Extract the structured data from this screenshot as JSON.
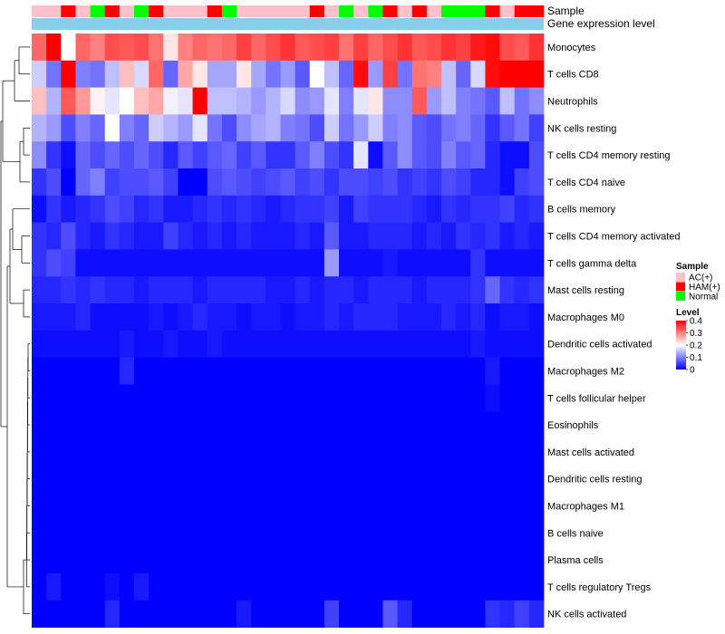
{
  "chart_data": {
    "type": "heatmap",
    "title": "",
    "annotation_labels": {
      "sample": "Sample",
      "expression": "Gene expression level"
    },
    "sample_annotation": [
      "AC(+)",
      "AC(+)",
      "HAM(+)",
      "AC(+)",
      "Normal",
      "HAM(+)",
      "AC(+)",
      "Normal",
      "HAM(+)",
      "AC(+)",
      "AC(+)",
      "AC(+)",
      "HAM(+)",
      "Normal",
      "AC(+)",
      "AC(+)",
      "AC(+)",
      "AC(+)",
      "AC(+)",
      "HAM(+)",
      "AC(+)",
      "Normal",
      "AC(+)",
      "Normal",
      "HAM(+)",
      "AC(+)",
      "HAM(+)",
      "AC(+)",
      "Normal",
      "Normal",
      "Normal",
      "HAM(+)",
      "AC(+)",
      "HAM(+)",
      "HAM(+)"
    ],
    "expression_annotation_color": "#87ceeb",
    "rows": [
      "Monocytes",
      "T cells CD8",
      "Neutrophils",
      "NK cells resting",
      "T cells CD4 memory resting",
      "T cells CD4 naive",
      "B cells memory",
      "T cells CD4 memory activated",
      "T cells gamma delta",
      "Mast cells resting",
      "Macrophages M0",
      "Dendritic cells activated",
      "Macrophages M2",
      "T cells follicular helper",
      "Eosinophils",
      "Mast cells activated",
      "Dendritic cells resting",
      "Macrophages M1",
      "B cells naive",
      "Plasma cells",
      "T cells regulatory  Tregs",
      "NK cells activated"
    ],
    "values": [
      [
        0.32,
        0.4,
        0.2,
        0.32,
        0.3,
        0.34,
        0.33,
        0.34,
        0.31,
        0.22,
        0.3,
        0.32,
        0.31,
        0.32,
        0.35,
        0.32,
        0.34,
        0.36,
        0.33,
        0.34,
        0.35,
        0.31,
        0.35,
        0.32,
        0.34,
        0.36,
        0.33,
        0.34,
        0.36,
        0.35,
        0.38,
        0.39,
        0.34,
        0.33,
        0.36
      ],
      [
        0.16,
        0.09,
        0.4,
        0.1,
        0.09,
        0.15,
        0.25,
        0.17,
        0.32,
        0.08,
        0.27,
        0.22,
        0.13,
        0.13,
        0.22,
        0.13,
        0.09,
        0.12,
        0.07,
        0.2,
        0.15,
        0.08,
        0.39,
        0.12,
        0.35,
        0.09,
        0.31,
        0.3,
        0.15,
        0.08,
        0.17,
        0.39,
        0.4,
        0.4,
        0.4
      ],
      [
        0.25,
        0.14,
        0.33,
        0.28,
        0.21,
        0.18,
        0.2,
        0.25,
        0.27,
        0.19,
        0.18,
        0.4,
        0.15,
        0.15,
        0.14,
        0.12,
        0.14,
        0.17,
        0.11,
        0.12,
        0.18,
        0.1,
        0.18,
        0.22,
        0.11,
        0.11,
        0.33,
        0.12,
        0.15,
        0.1,
        0.09,
        0.07,
        0.15,
        0.09,
        0.11
      ],
      [
        0.14,
        0.12,
        0.06,
        0.1,
        0.08,
        0.2,
        0.1,
        0.08,
        0.16,
        0.14,
        0.12,
        0.18,
        0.09,
        0.06,
        0.11,
        0.13,
        0.14,
        0.1,
        0.09,
        0.06,
        0.16,
        0.09,
        0.12,
        0.16,
        0.1,
        0.11,
        0.07,
        0.06,
        0.09,
        0.1,
        0.08,
        0.04,
        0.07,
        0.09,
        0.05
      ],
      [
        0.11,
        0.04,
        0.01,
        0.08,
        0.06,
        0.08,
        0.06,
        0.08,
        0.06,
        0.03,
        0.07,
        0.05,
        0.07,
        0.08,
        0.05,
        0.07,
        0.04,
        0.04,
        0.07,
        0.1,
        0.06,
        0.04,
        0.18,
        0.01,
        0.07,
        0.11,
        0.07,
        0.06,
        0.1,
        0.07,
        0.08,
        0.03,
        0.01,
        0.01,
        0.06
      ],
      [
        0.04,
        0.06,
        0.0,
        0.08,
        0.1,
        0.05,
        0.06,
        0.06,
        0.07,
        0.05,
        0.0,
        0.0,
        0.06,
        0.07,
        0.06,
        0.05,
        0.06,
        0.07,
        0.05,
        0.06,
        0.04,
        0.06,
        0.06,
        0.05,
        0.06,
        0.04,
        0.05,
        0.04,
        0.06,
        0.05,
        0.03,
        0.03,
        0.01,
        0.05,
        0.06
      ],
      [
        0.01,
        0.04,
        0.02,
        0.03,
        0.04,
        0.06,
        0.05,
        0.03,
        0.04,
        0.02,
        0.02,
        0.03,
        0.04,
        0.03,
        0.04,
        0.03,
        0.02,
        0.03,
        0.04,
        0.04,
        0.05,
        0.02,
        0.05,
        0.04,
        0.04,
        0.04,
        0.03,
        0.02,
        0.04,
        0.03,
        0.04,
        0.04,
        0.05,
        0.03,
        0.04
      ],
      [
        0.04,
        0.03,
        0.06,
        0.03,
        0.02,
        0.04,
        0.03,
        0.02,
        0.02,
        0.05,
        0.03,
        0.02,
        0.03,
        0.02,
        0.03,
        0.02,
        0.02,
        0.02,
        0.03,
        0.02,
        0.07,
        0.02,
        0.02,
        0.03,
        0.03,
        0.03,
        0.02,
        0.03,
        0.02,
        0.04,
        0.03,
        0.04,
        0.02,
        0.03,
        0.02
      ],
      [
        0.04,
        0.06,
        0.05,
        0.01,
        0.01,
        0.01,
        0.01,
        0.01,
        0.01,
        0.01,
        0.01,
        0.01,
        0.01,
        0.01,
        0.01,
        0.01,
        0.01,
        0.01,
        0.01,
        0.01,
        0.12,
        0.01,
        0.01,
        0.01,
        0.02,
        0.01,
        0.01,
        0.01,
        0.01,
        0.01,
        0.04,
        0.01,
        0.01,
        0.01,
        0.01
      ],
      [
        0.03,
        0.03,
        0.04,
        0.03,
        0.04,
        0.03,
        0.03,
        0.02,
        0.03,
        0.03,
        0.03,
        0.02,
        0.03,
        0.03,
        0.03,
        0.03,
        0.02,
        0.02,
        0.03,
        0.02,
        0.03,
        0.03,
        0.02,
        0.03,
        0.03,
        0.03,
        0.02,
        0.03,
        0.03,
        0.03,
        0.04,
        0.08,
        0.04,
        0.03,
        0.04
      ],
      [
        0.02,
        0.02,
        0.02,
        0.03,
        0.01,
        0.01,
        0.01,
        0.01,
        0.02,
        0.01,
        0.02,
        0.03,
        0.02,
        0.02,
        0.01,
        0.02,
        0.02,
        0.01,
        0.02,
        0.02,
        0.03,
        0.02,
        0.03,
        0.03,
        0.03,
        0.02,
        0.02,
        0.02,
        0.03,
        0.02,
        0.03,
        0.01,
        0.02,
        0.02,
        0.01
      ],
      [
        0.01,
        0.01,
        0.01,
        0.01,
        0.01,
        0.01,
        0.02,
        0.01,
        0.01,
        0.02,
        0.01,
        0.01,
        0.02,
        0.01,
        0.01,
        0.01,
        0.01,
        0.01,
        0.01,
        0.01,
        0.01,
        0.01,
        0.01,
        0.01,
        0.01,
        0.01,
        0.01,
        0.01,
        0.01,
        0.01,
        0.02,
        0.01,
        0.01,
        0.01,
        0.01
      ],
      [
        0.0,
        0.0,
        0.0,
        0.0,
        0.0,
        0.0,
        0.03,
        0.0,
        0.0,
        0.0,
        0.0,
        0.0,
        0.0,
        0.0,
        0.0,
        0.0,
        0.0,
        0.0,
        0.0,
        0.0,
        0.0,
        0.0,
        0.0,
        0.0,
        0.0,
        0.0,
        0.0,
        0.0,
        0.0,
        0.0,
        0.0,
        0.02,
        0.0,
        0.0,
        0.0
      ],
      [
        0.0,
        0.0,
        0.0,
        0.0,
        0.0,
        0.0,
        0.0,
        0.0,
        0.0,
        0.0,
        0.0,
        0.0,
        0.0,
        0.0,
        0.0,
        0.0,
        0.0,
        0.0,
        0.0,
        0.0,
        0.0,
        0.0,
        0.0,
        0.0,
        0.0,
        0.0,
        0.0,
        0.0,
        0.0,
        0.0,
        0.0,
        0.01,
        0.0,
        0.0,
        0.0
      ],
      [
        0.0,
        0.0,
        0.0,
        0.0,
        0.0,
        0.0,
        0.0,
        0.0,
        0.0,
        0.0,
        0.0,
        0.0,
        0.0,
        0.0,
        0.0,
        0.0,
        0.0,
        0.0,
        0.0,
        0.0,
        0.0,
        0.0,
        0.0,
        0.0,
        0.0,
        0.0,
        0.0,
        0.0,
        0.0,
        0.0,
        0.0,
        0.0,
        0.0,
        0.0,
        0.0
      ],
      [
        0.0,
        0.0,
        0.0,
        0.0,
        0.0,
        0.0,
        0.0,
        0.0,
        0.0,
        0.0,
        0.0,
        0.0,
        0.0,
        0.0,
        0.0,
        0.0,
        0.0,
        0.0,
        0.0,
        0.0,
        0.0,
        0.0,
        0.0,
        0.0,
        0.0,
        0.0,
        0.0,
        0.0,
        0.0,
        0.0,
        0.0,
        0.0,
        0.0,
        0.0,
        0.0
      ],
      [
        0.0,
        0.0,
        0.0,
        0.0,
        0.0,
        0.0,
        0.0,
        0.0,
        0.0,
        0.0,
        0.0,
        0.0,
        0.0,
        0.0,
        0.0,
        0.0,
        0.0,
        0.0,
        0.0,
        0.0,
        0.0,
        0.0,
        0.0,
        0.0,
        0.0,
        0.0,
        0.0,
        0.0,
        0.0,
        0.0,
        0.0,
        0.0,
        0.0,
        0.0,
        0.0
      ],
      [
        0.0,
        0.0,
        0.0,
        0.0,
        0.0,
        0.0,
        0.0,
        0.0,
        0.0,
        0.0,
        0.0,
        0.0,
        0.0,
        0.0,
        0.0,
        0.0,
        0.0,
        0.0,
        0.0,
        0.0,
        0.0,
        0.0,
        0.0,
        0.0,
        0.0,
        0.0,
        0.0,
        0.0,
        0.0,
        0.0,
        0.0,
        0.0,
        0.0,
        0.0,
        0.0
      ],
      [
        0.0,
        0.0,
        0.0,
        0.0,
        0.0,
        0.0,
        0.0,
        0.0,
        0.0,
        0.0,
        0.0,
        0.0,
        0.0,
        0.0,
        0.0,
        0.0,
        0.0,
        0.0,
        0.0,
        0.0,
        0.0,
        0.0,
        0.0,
        0.0,
        0.0,
        0.0,
        0.0,
        0.0,
        0.0,
        0.0,
        0.0,
        0.0,
        0.0,
        0.0,
        0.0
      ],
      [
        0.0,
        0.0,
        0.0,
        0.0,
        0.0,
        0.0,
        0.0,
        0.0,
        0.0,
        0.0,
        0.0,
        0.0,
        0.0,
        0.0,
        0.0,
        0.0,
        0.0,
        0.0,
        0.0,
        0.0,
        0.0,
        0.0,
        0.0,
        0.0,
        0.0,
        0.0,
        0.0,
        0.0,
        0.0,
        0.0,
        0.0,
        0.0,
        0.0,
        0.0,
        0.0
      ],
      [
        0.0,
        0.02,
        0.0,
        0.0,
        0.0,
        0.01,
        0.0,
        0.02,
        0.0,
        0.0,
        0.0,
        0.0,
        0.0,
        0.0,
        0.0,
        0.0,
        0.0,
        0.0,
        0.0,
        0.0,
        0.0,
        0.0,
        0.0,
        0.0,
        0.0,
        0.0,
        0.0,
        0.0,
        0.0,
        0.0,
        0.0,
        0.0,
        0.0,
        0.0,
        0.0
      ],
      [
        0.0,
        0.0,
        0.0,
        0.0,
        0.0,
        0.03,
        0.0,
        0.0,
        0.0,
        0.0,
        0.0,
        0.0,
        0.0,
        0.0,
        0.02,
        0.0,
        0.0,
        0.0,
        0.0,
        0.0,
        0.05,
        0.0,
        0.0,
        0.0,
        0.07,
        0.03,
        0.0,
        0.0,
        0.0,
        0.0,
        0.0,
        0.04,
        0.03,
        0.05,
        0.03
      ]
    ],
    "legend": {
      "sample": {
        "title": "Sample",
        "items": [
          {
            "label": "AC(+)",
            "color": "#ffc0cb"
          },
          {
            "label": "HAM(+)",
            "color": "#ff0000"
          },
          {
            "label": "Normal",
            "color": "#00ff00"
          }
        ]
      },
      "level": {
        "title": "Level",
        "min": 0,
        "max": 0.4,
        "ticks": [
          0.4,
          0.3,
          0.2,
          0.1,
          0
        ],
        "tick_labels": [
          "0.4",
          "0.3",
          "0.2",
          "0.1",
          "0"
        ],
        "colors": {
          "low": "#0000ff",
          "mid": "#ffffff",
          "high": "#ff0000"
        },
        "midpoint": 0.2
      }
    }
  }
}
